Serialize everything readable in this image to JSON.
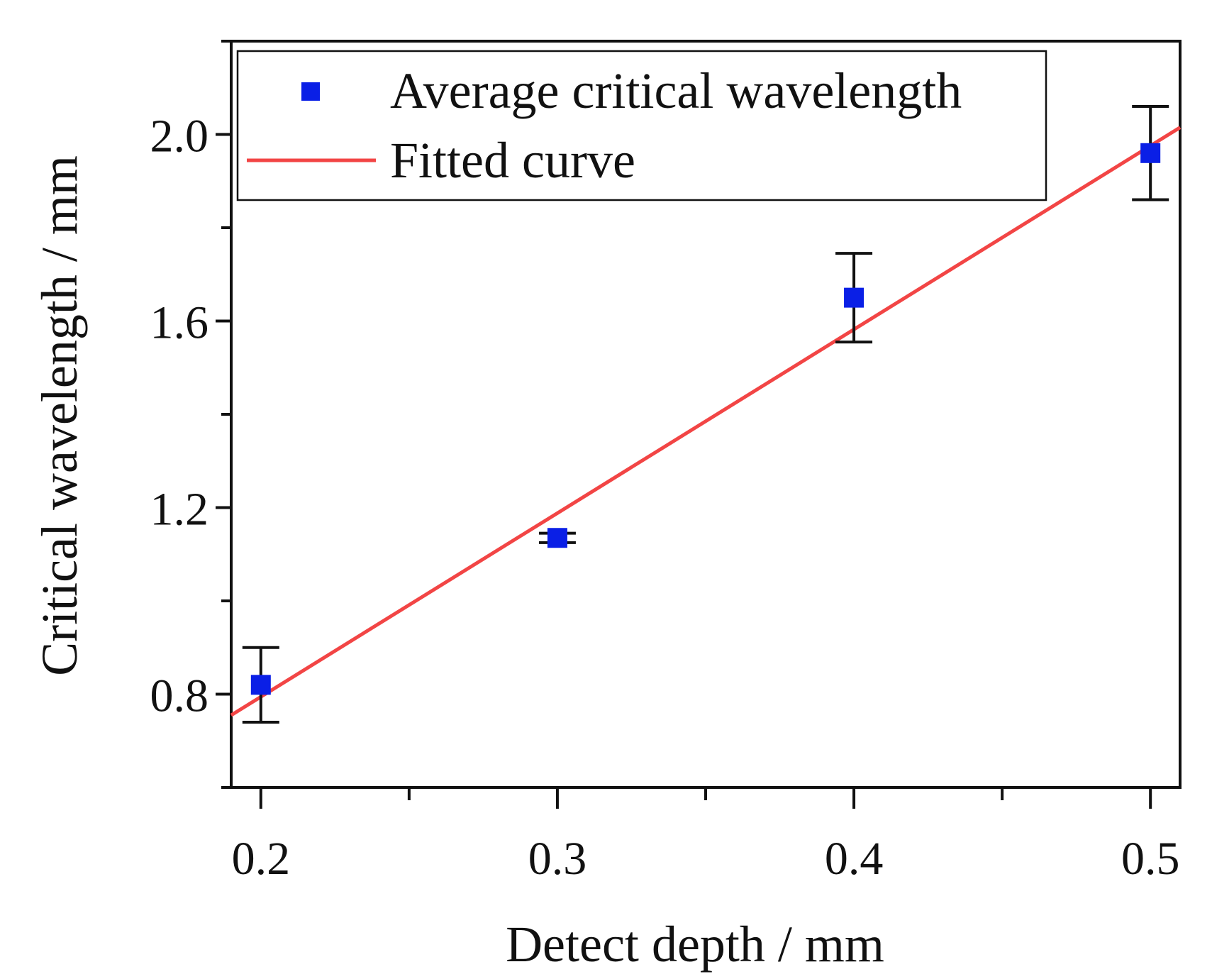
{
  "chart_data": {
    "type": "scatter",
    "title": "",
    "xlabel": "Detect depth / mm",
    "ylabel": "Critical wavelength / mm",
    "xlim": [
      0.19,
      0.51
    ],
    "ylim": [
      0.6,
      2.2
    ],
    "grid": false,
    "legend_position": "top-left",
    "x_ticks": [
      0.2,
      0.3,
      0.4,
      0.5
    ],
    "x_tick_labels": [
      "0.2",
      "0.3",
      "0.4",
      "0.5"
    ],
    "x_minor_ticks": [
      0.25,
      0.35,
      0.45
    ],
    "y_ticks": [
      0.8,
      1.2,
      1.6,
      2.0
    ],
    "y_tick_labels": [
      "0.8",
      "1.2",
      "1.6",
      "2.0"
    ],
    "y_minor_ticks": [
      0.6,
      1.0,
      1.4,
      1.8,
      2.2
    ],
    "series": [
      {
        "name": "Average critical wavelength",
        "kind": "scatter",
        "color": "#0a1fe6",
        "x": [
          0.2,
          0.3,
          0.4,
          0.5
        ],
        "y": [
          0.82,
          1.135,
          1.65,
          1.96
        ],
        "err_low": [
          0.08,
          0.01,
          0.095,
          0.1
        ],
        "err_high": [
          0.08,
          0.01,
          0.095,
          0.1
        ]
      },
      {
        "name": "Fitted curve",
        "kind": "line",
        "color": "#f24545",
        "x": [
          0.19,
          0.51
        ],
        "y": [
          0.755,
          2.015
        ]
      }
    ]
  }
}
